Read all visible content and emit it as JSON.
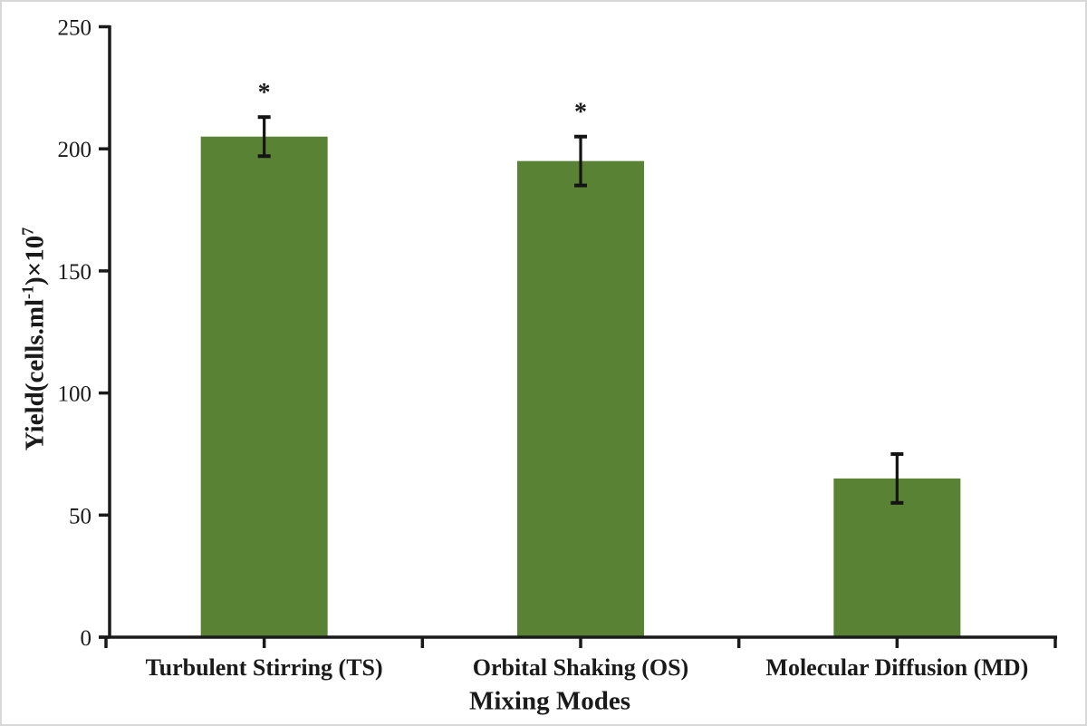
{
  "figure": {
    "background_color": "#ffffff",
    "border_color": "#d8d8d8"
  },
  "chart_data": {
    "type": "bar",
    "title": "",
    "xlabel": "Mixing Modes",
    "ylabel": "Yield(cells.ml⁻¹)×10⁷",
    "ylabel_parts": [
      {
        "t": "Yield(cells.ml"
      },
      {
        "t": "-1",
        "sup": true
      },
      {
        "t": ")×10"
      },
      {
        "t": "7",
        "sup": true
      }
    ],
    "categories": [
      "Turbulent Stirring (TS)",
      "Orbital Shaking (OS)",
      "Molecular Diffusion (MD)"
    ],
    "values": [
      205,
      195,
      65
    ],
    "error_bars": [
      8,
      10,
      10
    ],
    "significance_markers": [
      "*",
      "*",
      ""
    ],
    "ylim": [
      0,
      250
    ],
    "ytick_step": 50,
    "ytick_labels": [
      "0",
      "50",
      "100",
      "150",
      "200",
      "250"
    ],
    "grid": false,
    "legend": null,
    "bar_color": "#5a8234",
    "axis_color": "#1a1a1a",
    "error_bar_color": "#141414",
    "text_color": "#1a1a1a"
  }
}
